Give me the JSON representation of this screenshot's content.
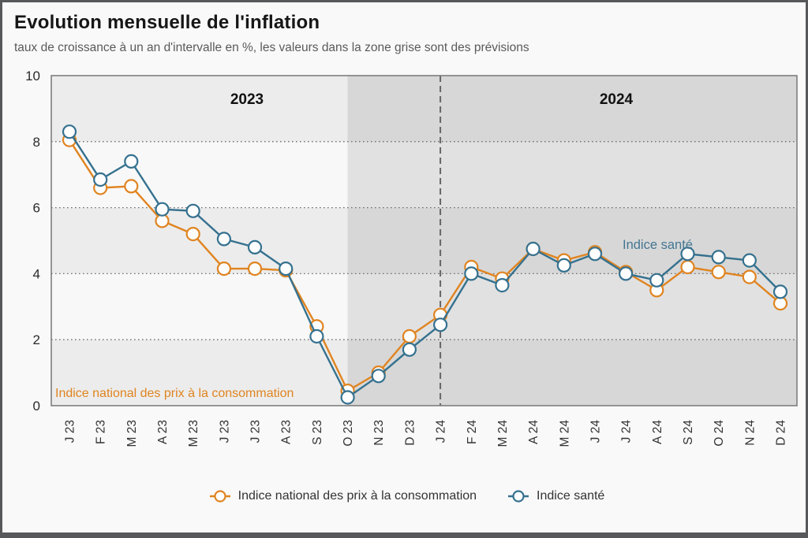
{
  "header": {
    "title": "Evolution mensuelle de l'inflation",
    "subtitle": "taux de croissance à un an d'intervalle en %, les valeurs dans la zone grise sont des prévisions"
  },
  "annotations": {
    "year_left": "2023",
    "year_right": "2024",
    "cpi_inline_label": "Indice national des prix à la consommation",
    "sante_inline_label": "Indice santé"
  },
  "colors": {
    "cpi_orange": "#E08420",
    "sante_blue": "#35718F",
    "band_light": "#f8f8f8",
    "band_gray": "#ececec",
    "forecast_overlay": "rgba(105,105,105,0.16)",
    "gridline": "#6e6e6e",
    "plot_border": "#7f7f7f",
    "tick_text": "#333333"
  },
  "chart_data": {
    "type": "line",
    "title": "Evolution mensuelle de l'inflation",
    "subtitle": "taux de croissance à un an d'intervalle en %, les valeurs dans la zone grise sont des prévisions",
    "categories": [
      "J 23",
      "F 23",
      "M 23",
      "A 23",
      "M 23",
      "J 23",
      "J 23",
      "A 23",
      "S 23",
      "O 23",
      "N 23",
      "D 23",
      "J 24",
      "F 24",
      "M 24",
      "A 24",
      "M 24",
      "J 24",
      "J 24",
      "A 24",
      "S 24",
      "O 24",
      "N 24",
      "D 24"
    ],
    "series": [
      {
        "name": "Indice national des prix à la consommation",
        "color": "#E08420",
        "marker": "open-circle",
        "values": [
          8.05,
          6.6,
          6.65,
          5.6,
          5.2,
          4.15,
          4.15,
          4.1,
          2.4,
          0.45,
          1.0,
          2.1,
          2.75,
          4.2,
          3.85,
          4.75,
          4.4,
          4.65,
          4.05,
          3.5,
          4.2,
          4.05,
          3.9,
          3.1
        ]
      },
      {
        "name": "Indice santé",
        "color": "#35718F",
        "marker": "open-circle",
        "values": [
          8.3,
          6.85,
          7.4,
          5.95,
          5.9,
          5.05,
          4.8,
          4.15,
          2.1,
          0.25,
          0.9,
          1.7,
          2.45,
          4.0,
          3.65,
          4.75,
          4.25,
          4.6,
          4.0,
          3.8,
          4.6,
          4.5,
          4.4,
          3.45
        ]
      }
    ],
    "ylim": [
      0,
      10
    ],
    "yticks": [
      0,
      2,
      4,
      6,
      8,
      10
    ],
    "xlabel": "",
    "ylabel": "",
    "grid": "horizontal dotted at 2,4,6,8",
    "background_bands": "alternating horizontal stripes every 2 units",
    "forecast_zone_start_index": 9,
    "forecast_zone_start_category": "O 23",
    "dashed_divider_index": 12,
    "dashed_divider_category": "J 24",
    "legend_position": "bottom-center"
  }
}
